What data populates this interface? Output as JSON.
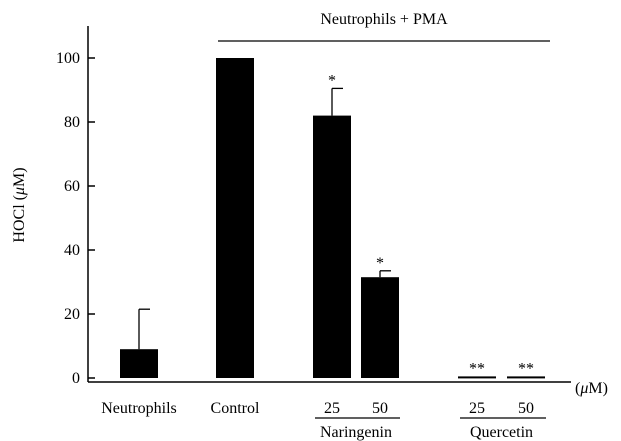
{
  "chart_data": {
    "type": "bar",
    "title": "",
    "ylabel": "HOCl (μM)",
    "ylabel_parts": [
      "HOCl (",
      "μ",
      "M)"
    ],
    "xunit": "(μM)",
    "xunit_parts": [
      "(",
      "μ",
      "M)"
    ],
    "ylim": [
      0,
      110
    ],
    "yticks": [
      0,
      20,
      40,
      60,
      80,
      100
    ],
    "grid": false,
    "legend": "none",
    "bar_color": "#000000",
    "categories": [
      "Neutrophils",
      "Control",
      "25",
      "50",
      "25",
      "50"
    ],
    "values": [
      9,
      100,
      82,
      31.5,
      0.5,
      0.5
    ],
    "errors": [
      12.5,
      0,
      8.5,
      2,
      0,
      0
    ],
    "significance": [
      "",
      "",
      "*",
      "*",
      "**",
      "**"
    ],
    "groups": [
      {
        "label": "Naringenin",
        "members": [
          2,
          3
        ]
      },
      {
        "label": "Quercetin",
        "members": [
          4,
          5
        ]
      }
    ],
    "top_annotation": {
      "label": "Neutrophils + PMA",
      "from": 1,
      "to": 5
    }
  }
}
